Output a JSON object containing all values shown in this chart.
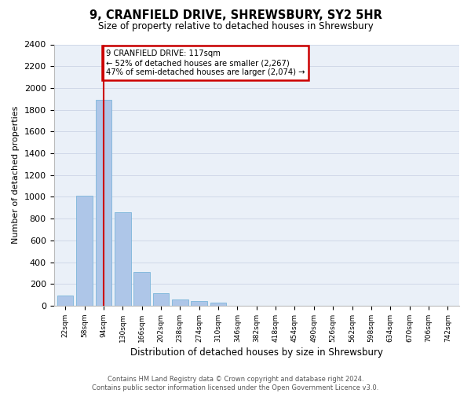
{
  "title": "9, CRANFIELD DRIVE, SHREWSBURY, SY2 5HR",
  "subtitle": "Size of property relative to detached houses in Shrewsbury",
  "xlabel": "Distribution of detached houses by size in Shrewsbury",
  "ylabel": "Number of detached properties",
  "footer_line1": "Contains HM Land Registry data © Crown copyright and database right 2024.",
  "footer_line2": "Contains public sector information licensed under the Open Government Licence v3.0.",
  "bar_labels": [
    "22sqm",
    "58sqm",
    "94sqm",
    "130sqm",
    "166sqm",
    "202sqm",
    "238sqm",
    "274sqm",
    "310sqm",
    "346sqm",
    "382sqm",
    "418sqm",
    "454sqm",
    "490sqm",
    "526sqm",
    "562sqm",
    "598sqm",
    "634sqm",
    "670sqm",
    "706sqm",
    "742sqm"
  ],
  "bar_values": [
    90,
    1010,
    1890,
    860,
    310,
    115,
    55,
    45,
    25,
    0,
    0,
    0,
    0,
    0,
    0,
    0,
    0,
    0,
    0,
    0,
    0
  ],
  "bar_color": "#aec6e8",
  "bar_edge_color": "#6baed6",
  "ylim": [
    0,
    2400
  ],
  "yticks": [
    0,
    200,
    400,
    600,
    800,
    1000,
    1200,
    1400,
    1600,
    1800,
    2000,
    2200,
    2400
  ],
  "property_bin_index": 2,
  "vline_color": "#cc0000",
  "annotation_line1": "9 CRANFIELD DRIVE: 117sqm",
  "annotation_line2": "← 52% of detached houses are smaller (2,267)",
  "annotation_line3": "47% of semi-detached houses are larger (2,074) →",
  "annotation_box_color": "#cc0000",
  "grid_color": "#d0d8e8",
  "bg_color": "#eaf0f8"
}
